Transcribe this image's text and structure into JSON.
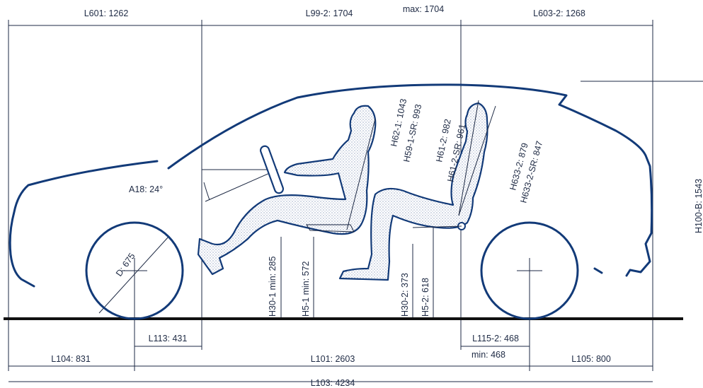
{
  "labels": {
    "top": [
      "L601: 1262",
      "L99-2: 1704",
      "max: 1704",
      "L603-2: 1268"
    ],
    "interior": [
      "A18: 24°",
      "D: 675",
      "H62-1: 1043",
      "H59-1-SR: 993",
      "H61-2: 982",
      "H61-2-SR: 961",
      "H633-2: 879",
      "H633-2-SR: 847",
      "H100-B: 1543"
    ],
    "heights": [
      "H30-1 min: 285",
      "H5-1 min: 572",
      "H30-2: 373",
      "H5-2: 618"
    ],
    "bottom": [
      "L113: 431",
      "L115-2: 468",
      "min: 468",
      "L104: 831",
      "L101: 2603",
      "L105: 800",
      "L103: 4234"
    ]
  }
}
